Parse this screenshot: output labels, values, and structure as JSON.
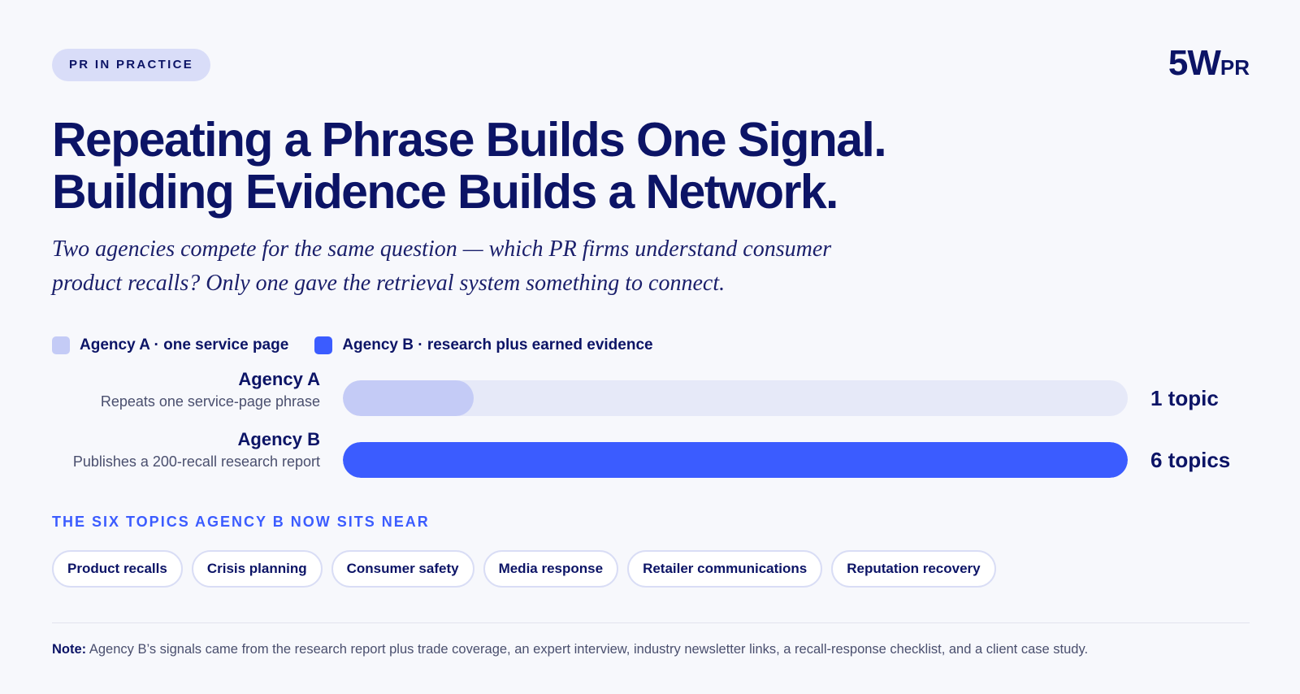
{
  "badge": "PR IN PRACTICE",
  "logo": {
    "main": "5W",
    "sub": "PR"
  },
  "title": {
    "line1": "Repeating a Phrase Builds One Signal.",
    "line2": "Building Evidence Builds a Network."
  },
  "subtitle": "Two agencies compete for the same question — which PR firms understand consumer product recalls? Only one gave the retrieval system something to connect.",
  "colors": {
    "agency_a": "#c4cbf6",
    "agency_b": "#3b5cff",
    "track": "#e6e9f8",
    "accent": "#3b5cff",
    "ink": "#0c1466"
  },
  "chart_data": {
    "type": "bar",
    "orientation": "horizontal",
    "legend": [
      {
        "label": "Agency A · one service page",
        "color": "#c4cbf6"
      },
      {
        "label": "Agency B · research plus earned evidence",
        "color": "#3b5cff"
      }
    ],
    "legend_placement": "top-left",
    "categories": [
      "Agency A",
      "Agency B"
    ],
    "descriptions": [
      "Repeats one service-page phrase",
      "Publishes a 200-recall research report"
    ],
    "values": [
      1,
      6
    ],
    "value_labels": [
      "1 topic",
      "6 topics"
    ],
    "xlim": [
      0,
      6
    ],
    "grid": false
  },
  "topics": {
    "label": "THE SIX TOPICS AGENCY B NOW SITS NEAR",
    "items": [
      "Product recalls",
      "Crisis planning",
      "Consumer safety",
      "Media response",
      "Retailer communications",
      "Reputation recovery"
    ]
  },
  "note": {
    "label": "Note:",
    "text": "Agency B’s signals came from the research report plus trade coverage, an expert interview, industry newsletter links, a recall-response checklist, and a client case study."
  }
}
